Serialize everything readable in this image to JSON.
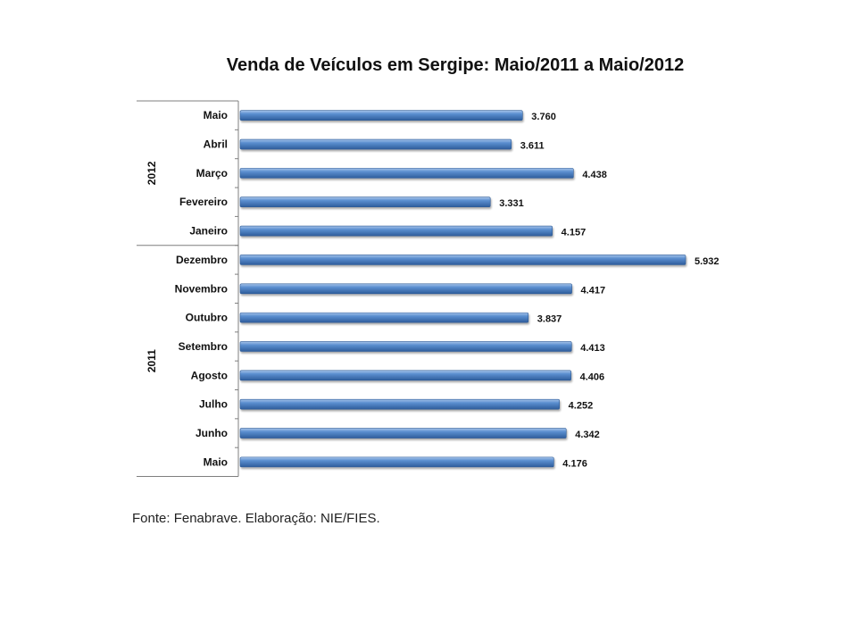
{
  "chart_data": {
    "type": "bar",
    "orientation": "horizontal",
    "title": "Venda de Veículos em Sergipe: Maio/2011 a Maio/2012",
    "source": "Fonte: Fenabrave. Elaboração: NIE/FIES.",
    "groups": [
      {
        "label": "2012",
        "categories": [
          "Maio",
          "Abril",
          "Março",
          "Fevereiro",
          "Janeiro"
        ],
        "values": [
          3760,
          3611,
          4438,
          3331,
          4157
        ],
        "value_labels": [
          "3.760",
          "3.611",
          "4.438",
          "3.331",
          "4.157"
        ]
      },
      {
        "label": "2011",
        "categories": [
          "Dezembro",
          "Novembro",
          "Outubro",
          "Setembro",
          "Agosto",
          "Julho",
          "Junho",
          "Maio"
        ],
        "values": [
          5932,
          4417,
          3837,
          4413,
          4406,
          4252,
          4342,
          4176
        ],
        "value_labels": [
          "5.932",
          "4.417",
          "3.837",
          "4.413",
          "4.406",
          "4.252",
          "4.342",
          "4.176"
        ]
      }
    ],
    "xlim": [
      0,
      6500
    ],
    "grid": false,
    "legend": "none",
    "colors": {
      "bar": "#4f81bd",
      "bar_light": "#8db3e2",
      "bar_dark": "#2c5a96",
      "axis": "#7f7f7f"
    }
  }
}
